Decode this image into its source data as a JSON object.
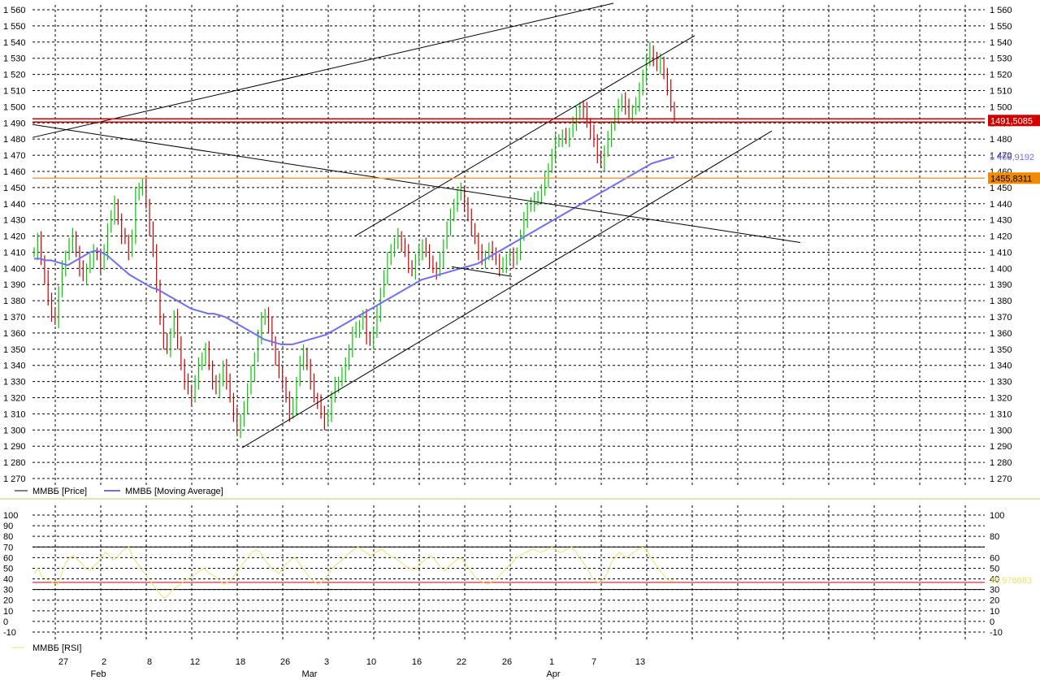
{
  "chart_data": [
    {
      "type": "line",
      "panel": "price",
      "y_ticks": [
        "1 560",
        "1 550",
        "1 540",
        "1 530",
        "1 520",
        "1 510",
        "1 500",
        "1 490",
        "1 480",
        "1 470",
        "1 460",
        "1 450",
        "1 440",
        "1 430",
        "1 420",
        "1 410",
        "1 400",
        "1 390",
        "1 380",
        "1 370",
        "1 360",
        "1 350",
        "1 340",
        "1 330",
        "1 320",
        "1 310",
        "1 300",
        "1 290",
        "1 280",
        "1 270"
      ],
      "ylim": [
        1270,
        1560
      ],
      "grid": true,
      "legend": [
        {
          "label": "ММВБ [Price]",
          "color": "#000000"
        },
        {
          "label": "ММВБ [Moving Average]",
          "color": "#6f6ff5"
        }
      ],
      "legend_position": "bottom-left",
      "price_markers": [
        {
          "label": "1491,5085",
          "value": 1491.5085,
          "color": "#d40000"
        },
        {
          "label": "1 468,9192",
          "value": 1468.9192,
          "color": "#6f6ff5"
        },
        {
          "label": "1455,8311",
          "value": 1455.8311,
          "color": "#f08a00"
        }
      ],
      "colors": {
        "up": "#00c800",
        "down": "#c80000",
        "ma": "#6f6ff5",
        "support": "#d40000",
        "resistance": "#e8a34a"
      },
      "series": [
        {
          "name": "ММВБ [Price]",
          "values": [
            1410,
            1418,
            1405,
            1395,
            1380,
            1372,
            1368,
            1385,
            1400,
            1408,
            1415,
            1420,
            1410,
            1400,
            1395,
            1400,
            1405,
            1410,
            1408,
            1402,
            1410,
            1425,
            1432,
            1440,
            1430,
            1420,
            1418,
            1410,
            1420,
            1445,
            1450,
            1452,
            1440,
            1425,
            1410,
            1390,
            1368,
            1355,
            1350,
            1360,
            1370,
            1355,
            1340,
            1330,
            1325,
            1320,
            1330,
            1340,
            1345,
            1350,
            1340,
            1330,
            1325,
            1330,
            1340,
            1330,
            1320,
            1310,
            1300,
            1305,
            1315,
            1325,
            1335,
            1345,
            1358,
            1368,
            1372,
            1365,
            1355,
            1345,
            1335,
            1330,
            1320,
            1310,
            1315,
            1330,
            1342,
            1348,
            1340,
            1330,
            1320,
            1318,
            1310,
            1305,
            1310,
            1320,
            1328,
            1330,
            1335,
            1340,
            1350,
            1360,
            1362,
            1365,
            1370,
            1358,
            1355,
            1360,
            1372,
            1385,
            1395,
            1405,
            1412,
            1415,
            1420,
            1415,
            1410,
            1402,
            1398,
            1405,
            1410,
            1415,
            1410,
            1405,
            1400,
            1398,
            1405,
            1415,
            1425,
            1432,
            1440,
            1445,
            1448,
            1440,
            1432,
            1425,
            1418,
            1410,
            1405,
            1408,
            1412,
            1410,
            1405,
            1400,
            1402,
            1406,
            1408,
            1405,
            1410,
            1420,
            1430,
            1438,
            1440,
            1442,
            1445,
            1448,
            1455,
            1462,
            1470,
            1478,
            1480,
            1482,
            1480,
            1484,
            1490,
            1495,
            1500,
            1498,
            1490,
            1485,
            1478,
            1470,
            1465,
            1472,
            1480,
            1488,
            1495,
            1500,
            1505,
            1500,
            1496,
            1498,
            1502,
            1510,
            1520,
            1528,
            1535,
            1530,
            1525,
            1528,
            1520,
            1512,
            1500,
            1496
          ]
        },
        {
          "name": "ММВБ [Moving Average]",
          "values": [
            1406,
            1406,
            1405,
            1405,
            1404,
            1403,
            1402,
            1404,
            1406,
            1408,
            1410,
            1411,
            1410,
            1408,
            1405,
            1402,
            1399,
            1396,
            1394,
            1392,
            1390,
            1388,
            1387,
            1385,
            1383,
            1381,
            1379,
            1377,
            1375,
            1374,
            1373,
            1372,
            1372,
            1371,
            1370,
            1368,
            1366,
            1364,
            1362,
            1360,
            1358,
            1356,
            1355,
            1354,
            1353,
            1353,
            1353,
            1354,
            1355,
            1356,
            1357,
            1358,
            1359,
            1361,
            1363,
            1365,
            1367,
            1369,
            1371,
            1373,
            1375,
            1377,
            1379,
            1381,
            1383,
            1385,
            1387,
            1389,
            1391,
            1393,
            1394,
            1395,
            1396,
            1397,
            1398,
            1399,
            1400,
            1401,
            1402,
            1403,
            1405,
            1407,
            1409,
            1411,
            1413,
            1415,
            1417,
            1419,
            1421,
            1423,
            1425,
            1427,
            1429,
            1431,
            1433,
            1435,
            1437,
            1439,
            1441,
            1443,
            1445,
            1447,
            1449,
            1451,
            1453,
            1455,
            1457,
            1459,
            1461,
            1463,
            1465,
            1466,
            1467,
            1468,
            1469
          ]
        }
      ],
      "annotations": [
        "trend lines",
        "ascending channel"
      ]
    },
    {
      "type": "line",
      "panel": "rsi",
      "y_ticks": [
        "100",
        "90",
        "80",
        "70",
        "60",
        "50",
        "40",
        "30",
        "20",
        "10",
        "0",
        "-10"
      ],
      "ylim": [
        -10,
        100
      ],
      "grid": true,
      "legend": [
        {
          "label": "ММВБ [RSI]",
          "color": "#e8e46a"
        }
      ],
      "legend_position": "bottom-left",
      "price_markers": [
        {
          "label": "38,976683",
          "value": 38.976683,
          "color": "#e8e46a"
        }
      ],
      "reference_lines": [
        70,
        30
      ],
      "series": [
        {
          "name": "ММВБ [RSI]",
          "values": [
            45,
            50,
            42,
            40,
            38,
            36,
            35,
            45,
            55,
            60,
            62,
            58,
            55,
            50,
            48,
            52,
            55,
            60,
            65,
            62,
            58,
            60,
            65,
            68,
            70,
            60,
            55,
            50,
            45,
            40,
            35,
            30,
            25,
            22,
            25,
            30,
            32,
            35,
            38,
            40,
            42,
            45,
            48,
            50,
            46,
            44,
            42,
            38,
            35,
            37,
            40,
            45,
            50,
            55,
            60,
            65,
            67,
            66,
            60,
            55,
            50,
            48,
            45,
            50,
            55,
            58,
            60,
            55,
            50,
            45,
            40,
            37,
            35,
            38,
            42,
            48,
            52,
            55,
            58,
            62,
            65,
            68,
            70,
            67,
            65,
            62,
            64,
            66,
            68,
            65,
            62,
            60,
            58,
            55,
            52,
            50,
            48,
            50,
            55,
            58,
            62,
            60,
            55,
            50,
            48,
            52,
            55,
            58,
            60,
            55,
            50,
            45,
            40,
            38,
            36,
            35,
            38,
            40,
            44,
            48,
            52,
            55,
            60,
            62,
            64,
            66,
            68,
            67,
            65,
            66,
            68,
            70,
            67,
            65,
            66,
            68,
            70,
            66,
            60,
            55,
            50,
            42,
            38,
            36,
            40,
            45,
            55,
            60,
            65,
            62,
            60,
            63,
            66,
            68,
            70,
            67,
            60,
            55,
            50,
            45,
            40,
            38,
            39
          ]
        }
      ]
    }
  ],
  "x_axis": {
    "day_ticks": [
      "27",
      "2",
      "8",
      "12",
      "18",
      "26",
      "3",
      "10",
      "16",
      "22",
      "26",
      "1",
      "7",
      "13"
    ],
    "month_labels": [
      "Feb",
      "Mar",
      "Apr"
    ]
  }
}
